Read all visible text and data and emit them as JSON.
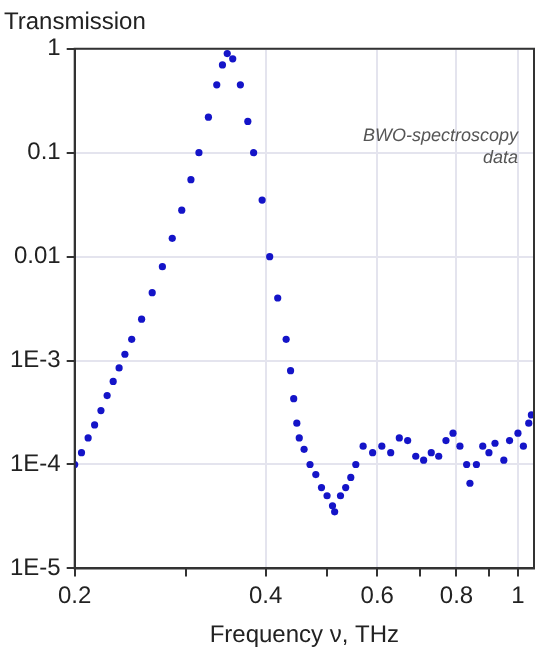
{
  "chart_data": {
    "type": "scatter",
    "ylabel": "Transmission",
    "xlabel": "Frequency ν, THz",
    "annotations": [
      "BWO-spectroscopy data"
    ],
    "log": "xy",
    "grid": true,
    "marker": "circle",
    "legend": false,
    "xlim": [
      0.2,
      1.06
    ],
    "xticks": [
      0.2,
      {
        "value": 0.3,
        "label": null
      },
      0.4,
      {
        "value": 0.5,
        "label": null
      },
      0.6,
      {
        "value": 0.7,
        "label": null
      },
      0.8,
      {
        "value": 0.9,
        "label": null
      },
      1
    ],
    "ylim": [
      1e-05,
      1
    ],
    "yticks": [
      {
        "value": 1e-05,
        "label": "1E-5"
      },
      {
        "value": 0.0001,
        "label": "1E-4"
      },
      {
        "value": 0.001,
        "label": "1E-3"
      },
      0.01,
      0.1,
      1
    ],
    "series": [
      {
        "color": "#1414c8",
        "x": [
          0.2,
          0.205,
          0.21,
          0.215,
          0.22,
          0.225,
          0.23,
          0.235,
          0.24,
          0.246,
          0.255,
          0.265,
          0.275,
          0.285,
          0.295,
          0.305,
          0.314,
          0.325,
          0.335,
          0.342,
          0.348,
          0.355,
          0.365,
          0.375,
          0.383,
          0.395,
          0.406,
          0.418,
          0.431,
          0.438,
          0.443,
          0.448,
          0.452,
          0.46,
          0.47,
          0.48,
          0.49,
          0.5,
          0.51,
          0.514,
          0.525,
          0.535,
          0.545,
          0.555,
          0.57,
          0.59,
          0.61,
          0.63,
          0.65,
          0.67,
          0.69,
          0.71,
          0.73,
          0.75,
          0.77,
          0.79,
          0.81,
          0.83,
          0.84,
          0.86,
          0.88,
          0.9,
          0.92,
          0.95,
          0.97,
          1.0,
          1.02,
          1.04,
          1.05
        ],
        "values": [
          0.0001,
          0.00013,
          0.00018,
          0.00024,
          0.00033,
          0.00046,
          0.00063,
          0.00085,
          0.00115,
          0.0016,
          0.0025,
          0.0045,
          0.008,
          0.015,
          0.028,
          0.055,
          0.1,
          0.22,
          0.45,
          0.7,
          0.9,
          0.8,
          0.45,
          0.2,
          0.1,
          0.035,
          0.01,
          0.004,
          0.0016,
          0.0008,
          0.00043,
          0.00025,
          0.00018,
          0.00014,
          0.0001,
          8e-05,
          6e-05,
          5e-05,
          4e-05,
          3.5e-05,
          5e-05,
          6e-05,
          7.5e-05,
          0.0001,
          0.00015,
          0.00013,
          0.00015,
          0.00013,
          0.00018,
          0.00017,
          0.00012,
          0.00011,
          0.00013,
          0.00012,
          0.00017,
          0.0002,
          0.00015,
          0.0001,
          6.6e-05,
          0.0001,
          0.00015,
          0.00013,
          0.00016,
          0.00011,
          0.00017,
          0.0002,
          0.00015,
          0.00025,
          0.0003
        ]
      }
    ]
  }
}
